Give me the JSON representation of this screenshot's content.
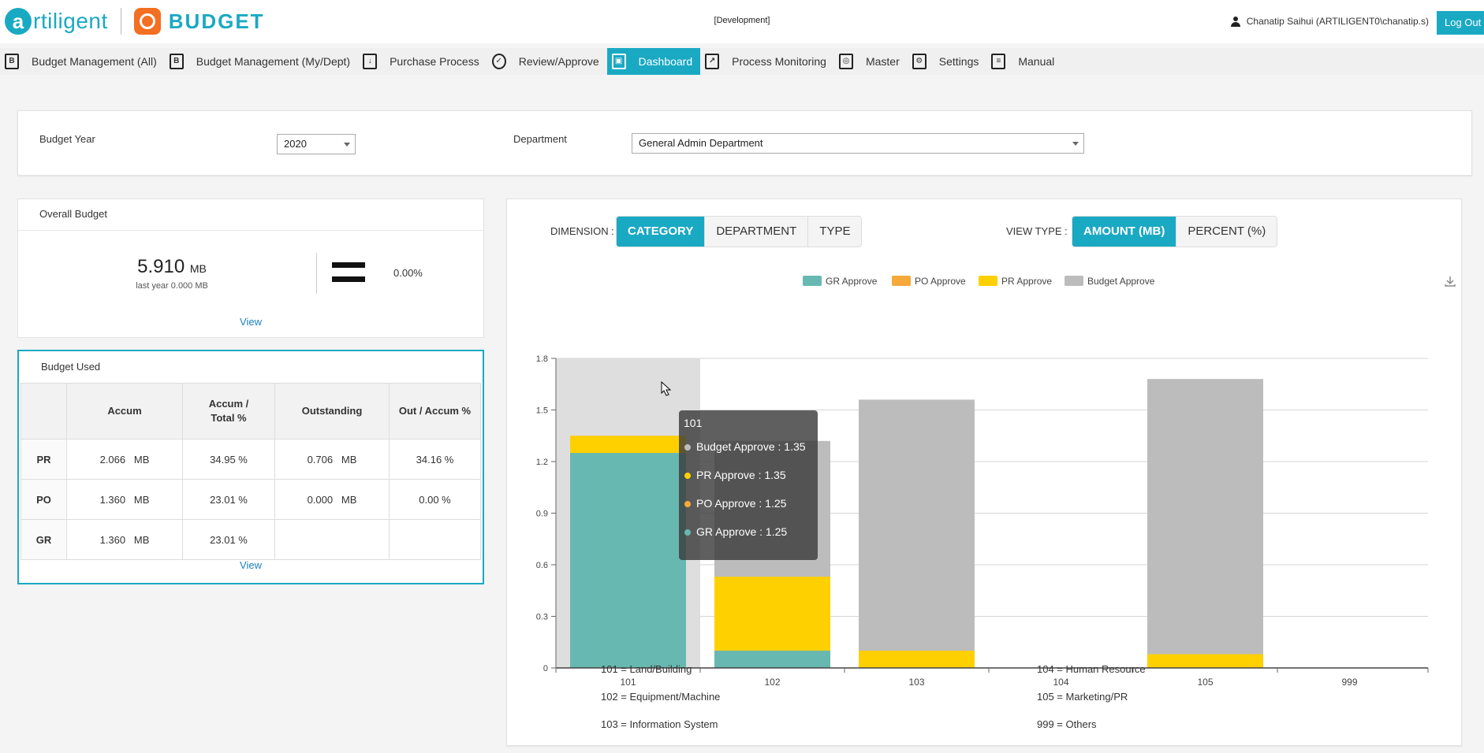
{
  "header": {
    "logo_text": "rtiligent",
    "product": "BUDGET",
    "environment": "[Development]",
    "user": "Chanatip Saihui (ARTILIGENT0\\chanatip.s)",
    "logout_label": "Log Out"
  },
  "nav": [
    {
      "label": "Budget Management (All)",
      "icon": "B",
      "name": "nav-budget-management-all",
      "active": false
    },
    {
      "label": "Budget Management (My/Dept)",
      "icon": "B",
      "name": "nav-budget-management-my-dept",
      "active": false
    },
    {
      "label": "Purchase Process",
      "icon": "↓",
      "name": "nav-purchase-process",
      "active": false
    },
    {
      "label": "Review/Approve",
      "icon": "✓",
      "name": "nav-review-approve",
      "active": false
    },
    {
      "label": "Dashboard",
      "icon": "▣",
      "name": "nav-dashboard",
      "active": true
    },
    {
      "label": "Process Monitoring",
      "icon": "↗",
      "name": "nav-process-monitoring",
      "active": false
    },
    {
      "label": "Master",
      "icon": "◎",
      "name": "nav-master",
      "active": false
    },
    {
      "label": "Settings",
      "icon": "⚙",
      "name": "nav-settings",
      "active": false
    },
    {
      "label": "Manual",
      "icon": "≡",
      "name": "nav-manual",
      "active": false
    }
  ],
  "filters": {
    "year_label": "Budget Year",
    "year_value": "2020",
    "dept_label": "Department",
    "dept_value": "General Admin Department"
  },
  "overall": {
    "title": "Overall Budget",
    "value": "5.910",
    "unit": "MB",
    "last_year": "last year 0.000 MB",
    "change_pct": "0.00%",
    "view_label": "View"
  },
  "budget_used": {
    "title": "Budget Used",
    "headers": [
      "",
      "Accum",
      "Accum / Total %",
      "Outstanding",
      "Out / Accum %"
    ],
    "rows": [
      [
        "PR",
        "2.066   MB",
        "34.95 %",
        "0.706   MB",
        "34.16 %"
      ],
      [
        "PO",
        "1.360   MB",
        "23.01 %",
        "0.000   MB",
        "0.00 %"
      ],
      [
        "GR",
        "1.360   MB",
        "23.01 %",
        "",
        ""
      ]
    ],
    "view_label": "View"
  },
  "chart_controls": {
    "dimension_label": "DIMENSION :",
    "dimension_options": [
      "CATEGORY",
      "DEPARTMENT",
      "TYPE"
    ],
    "dimension_active": "CATEGORY",
    "view_type_label": "VIEW TYPE :",
    "view_type_options": [
      "AMOUNT (MB)",
      "PERCENT (%)"
    ],
    "view_type_active": "AMOUNT (MB)"
  },
  "colors": {
    "gr": "#67b8b0",
    "po": "#f4a93a",
    "pr": "#ffd000",
    "budget": "#bcbcbc",
    "accent": "#1aa9c3"
  },
  "chart_data": {
    "type": "bar",
    "stacked": false,
    "categories": [
      "101",
      "102",
      "103",
      "104",
      "105",
      "999"
    ],
    "series": [
      {
        "name": "Budget Approve",
        "values": [
          1.35,
          1.32,
          1.56,
          0,
          1.68,
          0
        ]
      },
      {
        "name": "PR Approve",
        "values": [
          1.35,
          0.53,
          0.1,
          0,
          0.08,
          0
        ]
      },
      {
        "name": "PO Approve",
        "values": [
          1.25,
          0.1,
          0,
          0,
          0,
          0
        ]
      },
      {
        "name": "GR Approve",
        "values": [
          1.25,
          0.1,
          0,
          0,
          0,
          0
        ]
      }
    ],
    "legend": [
      "GR Approve",
      "PO Approve",
      "PR Approve",
      "Budget Approve"
    ],
    "yticks": [
      "0",
      "0.3",
      "0.6",
      "0.9",
      "1.2",
      "1.5",
      "1.8"
    ],
    "ylim": [
      0,
      1.8
    ],
    "grid": true,
    "legend_position": "top",
    "hovered_category": "101",
    "tooltip": {
      "title": "101",
      "items": [
        {
          "label": "Budget Approve : 1.35",
          "series": "budget"
        },
        {
          "label": "PR Approve : 1.35",
          "series": "pr"
        },
        {
          "label": "PO Approve : 1.25",
          "series": "po"
        },
        {
          "label": "GR Approve : 1.25",
          "series": "gr"
        }
      ]
    },
    "category_defs": [
      "101 = Land/Building",
      "102 = Equipment/Machine",
      "103 = Information System",
      "104 = Human Resource",
      "105 = Marketing/PR",
      "999 = Others"
    ]
  }
}
